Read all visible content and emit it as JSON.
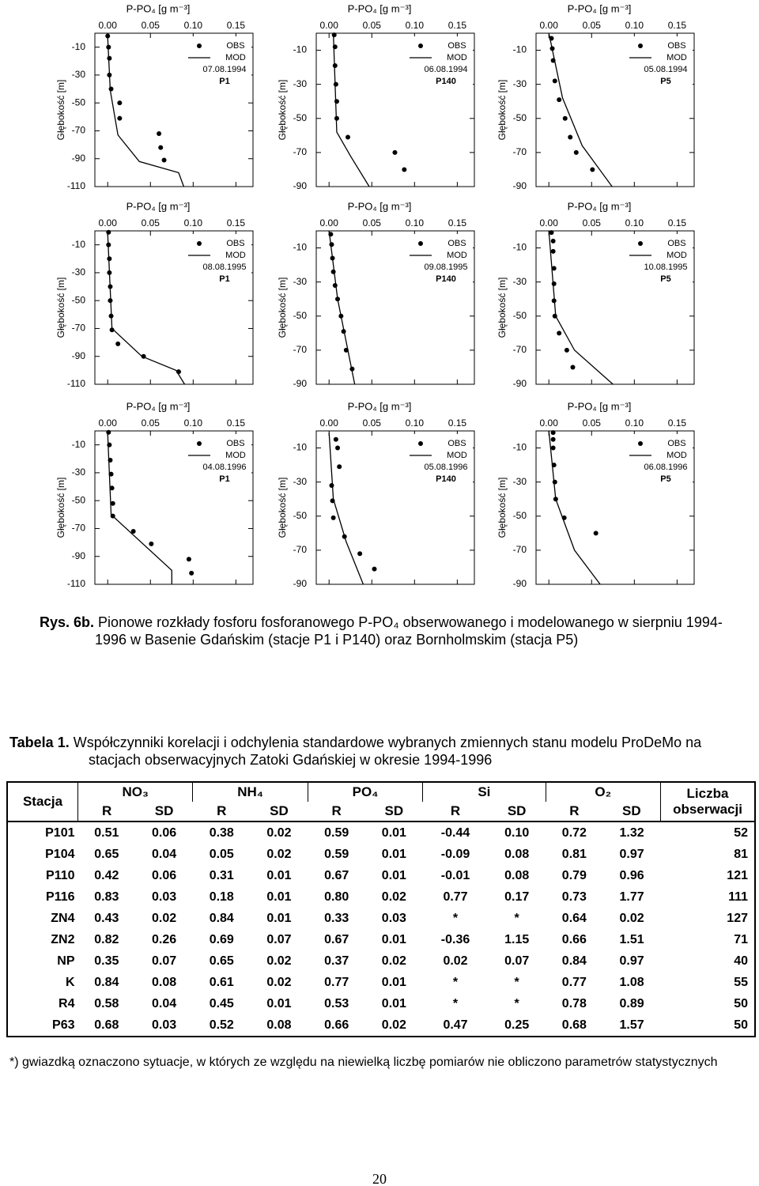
{
  "chart_data": [
    {
      "type": "line",
      "xlabel": "P-PO₄ [g m⁻³]",
      "ylabel": "Głębokość [m]",
      "date": "07.08.1994",
      "station": "P1",
      "xlim": [
        -0.015,
        0.17
      ],
      "xticks": [
        {
          "value": 0,
          "label": "0.00"
        },
        0.05,
        {
          "value": 0.1,
          "label": "0.10"
        },
        0.15
      ],
      "ylim": [
        -110,
        0
      ],
      "yticks": [
        -10,
        -30,
        -50,
        -70,
        -90,
        -110
      ],
      "series": [
        {
          "name": "OBS",
          "style": "markers",
          "color": "#000000",
          "x": [
            0.0,
            0.001,
            0.002,
            0.002,
            0.004,
            0.014,
            0.014,
            0.06,
            0.062,
            0.066
          ],
          "values": [
            -2,
            -10,
            -18,
            -30,
            -40,
            -50,
            -61,
            -72,
            -82,
            -91
          ]
        },
        {
          "name": "MOD",
          "style": "line",
          "color": "#000000",
          "x": [
            0.0,
            0.003,
            0.012,
            0.037,
            0.083,
            0.089
          ],
          "values": [
            -3,
            -41,
            -73,
            -92,
            -100,
            -110
          ]
        }
      ]
    },
    {
      "type": "line",
      "xlabel": "P-PO₄ [g m⁻³]",
      "ylabel": "Głębokość [m]",
      "date": "06.08.1994",
      "station": "P140",
      "xlim": [
        -0.015,
        0.17
      ],
      "xticks": [
        {
          "value": 0,
          "label": "0.00"
        },
        0.05,
        {
          "value": 0.1,
          "label": "0.10"
        },
        0.15
      ],
      "ylim": [
        -90,
        0
      ],
      "yticks": [
        -10,
        -30,
        -50,
        -70,
        -90
      ],
      "series": [
        {
          "name": "OBS",
          "style": "markers",
          "color": "#000000",
          "x": [
            0.006,
            0.007,
            0.007,
            0.008,
            0.009,
            0.009,
            0.022,
            0.077,
            0.088
          ],
          "values": [
            -1,
            -8,
            -19,
            -30,
            -40,
            -50,
            -61,
            -70,
            -80
          ]
        },
        {
          "name": "MOD",
          "style": "line",
          "color": "#000000",
          "x": [
            0.005,
            0.009,
            0.025,
            0.047
          ],
          "values": [
            0,
            -58,
            -72,
            -90
          ]
        }
      ]
    },
    {
      "type": "line",
      "xlabel": "P-PO₄ [g m⁻³]",
      "ylabel": "Głębokość [m]",
      "date": "05.08.1994",
      "station": "P5",
      "xlim": [
        -0.015,
        0.17
      ],
      "xticks": [
        {
          "value": 0,
          "label": "0.00"
        },
        0.05,
        {
          "value": 0.1,
          "label": "0.10"
        },
        0.15
      ],
      "ylim": [
        -90,
        0
      ],
      "yticks": [
        -10,
        -30,
        -50,
        -70,
        -90
      ],
      "series": [
        {
          "name": "OBS",
          "style": "markers",
          "color": "#000000",
          "x": [
            0.003,
            0.004,
            0.005,
            0.007,
            0.012,
            0.019,
            0.025,
            0.032,
            0.051
          ],
          "values": [
            -3,
            -9,
            -16,
            -28,
            -39,
            -50,
            -61,
            -70,
            -80
          ]
        },
        {
          "name": "MOD",
          "style": "line",
          "color": "#000000",
          "x": [
            0.0,
            0.016,
            0.039,
            0.074
          ],
          "values": [
            0,
            -38,
            -66,
            -90
          ]
        }
      ]
    },
    {
      "type": "line",
      "xlabel": "P-PO₄ [g m⁻³]",
      "ylabel": "Głębokość [m]",
      "date": "08.08.1995",
      "station": "P1",
      "xlim": [
        -0.015,
        0.17
      ],
      "xticks": [
        {
          "value": 0,
          "label": "0.00"
        },
        0.05,
        {
          "value": 0.1,
          "label": "0.10"
        },
        0.15
      ],
      "ylim": [
        -110,
        0
      ],
      "yticks": [
        -10,
        -30,
        -50,
        -70,
        -90,
        -110
      ],
      "series": [
        {
          "name": "OBS",
          "style": "markers",
          "color": "#000000",
          "x": [
            0.001,
            0.001,
            0.002,
            0.002,
            0.003,
            0.003,
            0.004,
            0.005,
            0.012,
            0.042,
            0.083
          ],
          "values": [
            -1,
            -10,
            -20,
            -30,
            -40,
            -50,
            -61,
            -71,
            -81,
            -90,
            -101
          ]
        },
        {
          "name": "MOD",
          "style": "line",
          "color": "#000000",
          "x": [
            0.0,
            0.005,
            0.04,
            0.08,
            0.09
          ],
          "values": [
            -2,
            -70,
            -90,
            -100,
            -110
          ]
        }
      ]
    },
    {
      "type": "line",
      "xlabel": "P-PO₄ [g m⁻³]",
      "ylabel": "Głębokość [m]",
      "date": "09.08.1995",
      "station": "P140",
      "xlim": [
        -0.015,
        0.17
      ],
      "xticks": [
        {
          "value": 0,
          "label": "0.00"
        },
        0.05,
        {
          "value": 0.1,
          "label": "0.10"
        },
        0.15
      ],
      "ylim": [
        -90,
        0
      ],
      "yticks": [
        -10,
        -30,
        -50,
        -70,
        -90
      ],
      "series": [
        {
          "name": "OBS",
          "style": "markers",
          "color": "#000000",
          "x": [
            0.002,
            0.003,
            0.004,
            0.005,
            0.007,
            0.01,
            0.014,
            0.017,
            0.02,
            0.027
          ],
          "values": [
            -2,
            -8,
            -16,
            -24,
            -32,
            -40,
            -50,
            -59,
            -70,
            -81
          ]
        },
        {
          "name": "MOD",
          "style": "line",
          "color": "#000000",
          "x": [
            0.0,
            0.01,
            0.02,
            0.03
          ],
          "values": [
            0,
            -40,
            -65,
            -90
          ]
        }
      ]
    },
    {
      "type": "line",
      "xlabel": "P-PO₄ [g m⁻³]",
      "ylabel": "Głębokość [m]",
      "date": "10.08.1995",
      "station": "P5",
      "xlim": [
        -0.015,
        0.17
      ],
      "xticks": [
        {
          "value": 0,
          "label": "0.00"
        },
        0.05,
        {
          "value": 0.1,
          "label": "0.10"
        },
        0.15
      ],
      "ylim": [
        -90,
        0
      ],
      "yticks": [
        -10,
        -30,
        -50,
        -70,
        -90
      ],
      "series": [
        {
          "name": "OBS",
          "style": "markers",
          "color": "#000000",
          "x": [
            0.003,
            0.005,
            0.005,
            0.006,
            0.006,
            0.006,
            0.007,
            0.012,
            0.021,
            0.028
          ],
          "values": [
            -1,
            -6,
            -12,
            -22,
            -31,
            -41,
            -50,
            -60,
            -70,
            -80
          ]
        },
        {
          "name": "MOD",
          "style": "line",
          "color": "#000000",
          "x": [
            0.0,
            0.008,
            0.03,
            0.075
          ],
          "values": [
            0,
            -50,
            -70,
            -90
          ]
        }
      ]
    },
    {
      "type": "line",
      "xlabel": "P-PO₄ [g m⁻³]",
      "ylabel": "Głębokość [m]",
      "date": "04.08.1996",
      "station": "P1",
      "xlim": [
        -0.015,
        0.17
      ],
      "xticks": [
        {
          "value": 0,
          "label": "0.00"
        },
        0.05,
        {
          "value": 0.1,
          "label": "0.10"
        },
        0.15
      ],
      "ylim": [
        -110,
        0
      ],
      "yticks": [
        -10,
        -30,
        -50,
        -70,
        -90,
        -110
      ],
      "series": [
        {
          "name": "OBS",
          "style": "markers",
          "color": "#000000",
          "x": [
            0.001,
            0.002,
            0.003,
            0.004,
            0.005,
            0.006,
            0.006,
            0.03,
            0.051,
            0.095,
            0.098
          ],
          "values": [
            -1,
            -10,
            -21,
            -31,
            -41,
            -52,
            -61,
            -72,
            -81,
            -92,
            -102
          ]
        },
        {
          "name": "MOD",
          "style": "line",
          "color": "#000000",
          "x": [
            0.0,
            0.004,
            0.075,
            0.075
          ],
          "values": [
            -2,
            -60,
            -100,
            -110
          ]
        }
      ]
    },
    {
      "type": "line",
      "xlabel": "P-PO₄ [g m⁻³]",
      "ylabel": "Głębokość [m]",
      "date": "05.08.1996",
      "station": "P140",
      "xlim": [
        -0.015,
        0.17
      ],
      "xticks": [
        {
          "value": 0,
          "label": "0.00"
        },
        0.05,
        {
          "value": 0.1,
          "label": "0.10"
        },
        0.15
      ],
      "ylim": [
        -90,
        0
      ],
      "yticks": [
        -10,
        -30,
        -50,
        -70,
        -90
      ],
      "series": [
        {
          "name": "OBS",
          "style": "markers",
          "color": "#000000",
          "x": [
            0.008,
            0.01,
            0.012,
            0.003,
            0.004,
            0.005,
            0.018,
            0.036,
            0.053
          ],
          "values": [
            -5,
            -10,
            -21,
            -32,
            -41,
            -51,
            -62,
            -72,
            -81
          ]
        },
        {
          "name": "MOD",
          "style": "line",
          "color": "#000000",
          "x": [
            0.0,
            0.005,
            0.02,
            0.04
          ],
          "values": [
            -1,
            -40,
            -65,
            -90
          ]
        }
      ]
    },
    {
      "type": "line",
      "xlabel": "P-PO₄ [g m⁻³]",
      "ylabel": "Głębokość [m]",
      "date": "06.08.1996",
      "station": "P5",
      "xlim": [
        -0.015,
        0.17
      ],
      "xticks": [
        {
          "value": 0,
          "label": "0.00"
        },
        0.05,
        {
          "value": 0.1,
          "label": "0.10"
        },
        0.15
      ],
      "ylim": [
        -90,
        0
      ],
      "yticks": [
        -10,
        -30,
        -50,
        -70,
        -90
      ],
      "series": [
        {
          "name": "OBS",
          "style": "markers",
          "color": "#000000",
          "x": [
            0.005,
            0.005,
            0.005,
            0.006,
            0.007,
            0.008,
            0.018,
            0.055
          ],
          "values": [
            -1,
            -5,
            -10,
            -20,
            -30,
            -40,
            -51,
            -60
          ]
        },
        {
          "name": "MOD",
          "style": "line",
          "color": "#000000",
          "x": [
            0.0,
            0.008,
            0.03,
            0.06
          ],
          "values": [
            0,
            -40,
            -70,
            -90
          ]
        }
      ]
    }
  ],
  "figure_caption": {
    "label": "Rys. 6b.",
    "text": "Pionowe rozkłady fosforu fosforanowego P-PO₄ obserwowanego i modelowanego w sierpniu 1994-1996 w Basenie Gdańskim (stacje P1 i P140) oraz Bornholmskim (stacja P5)"
  },
  "table": {
    "label": "Tabela 1.",
    "title": "Współczynniki korelacji i odchylenia standardowe wybranych zmiennych stanu modelu ProDeMo na stacjach obserwacyjnych Zatoki Gdańskiej w okresie 1994-1996",
    "station_header": "Stacja",
    "groups": [
      "NO₃",
      "NH₄",
      "PO₄",
      "Si",
      "O₂"
    ],
    "count_header": "Liczba obserwacji",
    "sub_headers": [
      "R",
      "SD",
      "R",
      "SD",
      "R",
      "SD",
      "R",
      "SD",
      "R",
      "SD"
    ],
    "rows": [
      [
        "P101",
        "0.51",
        "0.06",
        "0.38",
        "0.02",
        "0.59",
        "0.01",
        "-0.44",
        "0.10",
        "0.72",
        "1.32",
        "52"
      ],
      [
        "P104",
        "0.65",
        "0.04",
        "0.05",
        "0.02",
        "0.59",
        "0.01",
        "-0.09",
        "0.08",
        "0.81",
        "0.97",
        "81"
      ],
      [
        "P110",
        "0.42",
        "0.06",
        "0.31",
        "0.01",
        "0.67",
        "0.01",
        "-0.01",
        "0.08",
        "0.79",
        "0.96",
        "121"
      ],
      [
        "P116",
        "0.83",
        "0.03",
        "0.18",
        "0.01",
        "0.80",
        "0.02",
        "0.77",
        "0.17",
        "0.73",
        "1.77",
        "111"
      ],
      [
        "ZN4",
        "0.43",
        "0.02",
        "0.84",
        "0.01",
        "0.33",
        "0.03",
        "*",
        "*",
        "0.64",
        "0.02",
        "127"
      ],
      [
        "ZN2",
        "0.82",
        "0.26",
        "0.69",
        "0.07",
        "0.67",
        "0.01",
        "-0.36",
        "1.15",
        "0.66",
        "1.51",
        "71"
      ],
      [
        "NP",
        "0.35",
        "0.07",
        "0.65",
        "0.02",
        "0.37",
        "0.02",
        "0.02",
        "0.07",
        "0.84",
        "0.97",
        "40"
      ],
      [
        "K",
        "0.84",
        "0.08",
        "0.61",
        "0.02",
        "0.77",
        "0.01",
        "*",
        "*",
        "0.77",
        "1.08",
        "55"
      ],
      [
        "R4",
        "0.58",
        "0.04",
        "0.45",
        "0.01",
        "0.53",
        "0.01",
        "*",
        "*",
        "0.78",
        "0.89",
        "50"
      ],
      [
        "P63",
        "0.68",
        "0.03",
        "0.52",
        "0.08",
        "0.66",
        "0.02",
        "0.47",
        "0.25",
        "0.68",
        "1.57",
        "50"
      ]
    ]
  },
  "footnote": {
    "marker": "*)",
    "text": "gwiazdką oznaczono sytuacje, w których ze względu na niewielką liczbę pomiarów nie obliczono parametrów statystycznych"
  },
  "page_number": "20"
}
